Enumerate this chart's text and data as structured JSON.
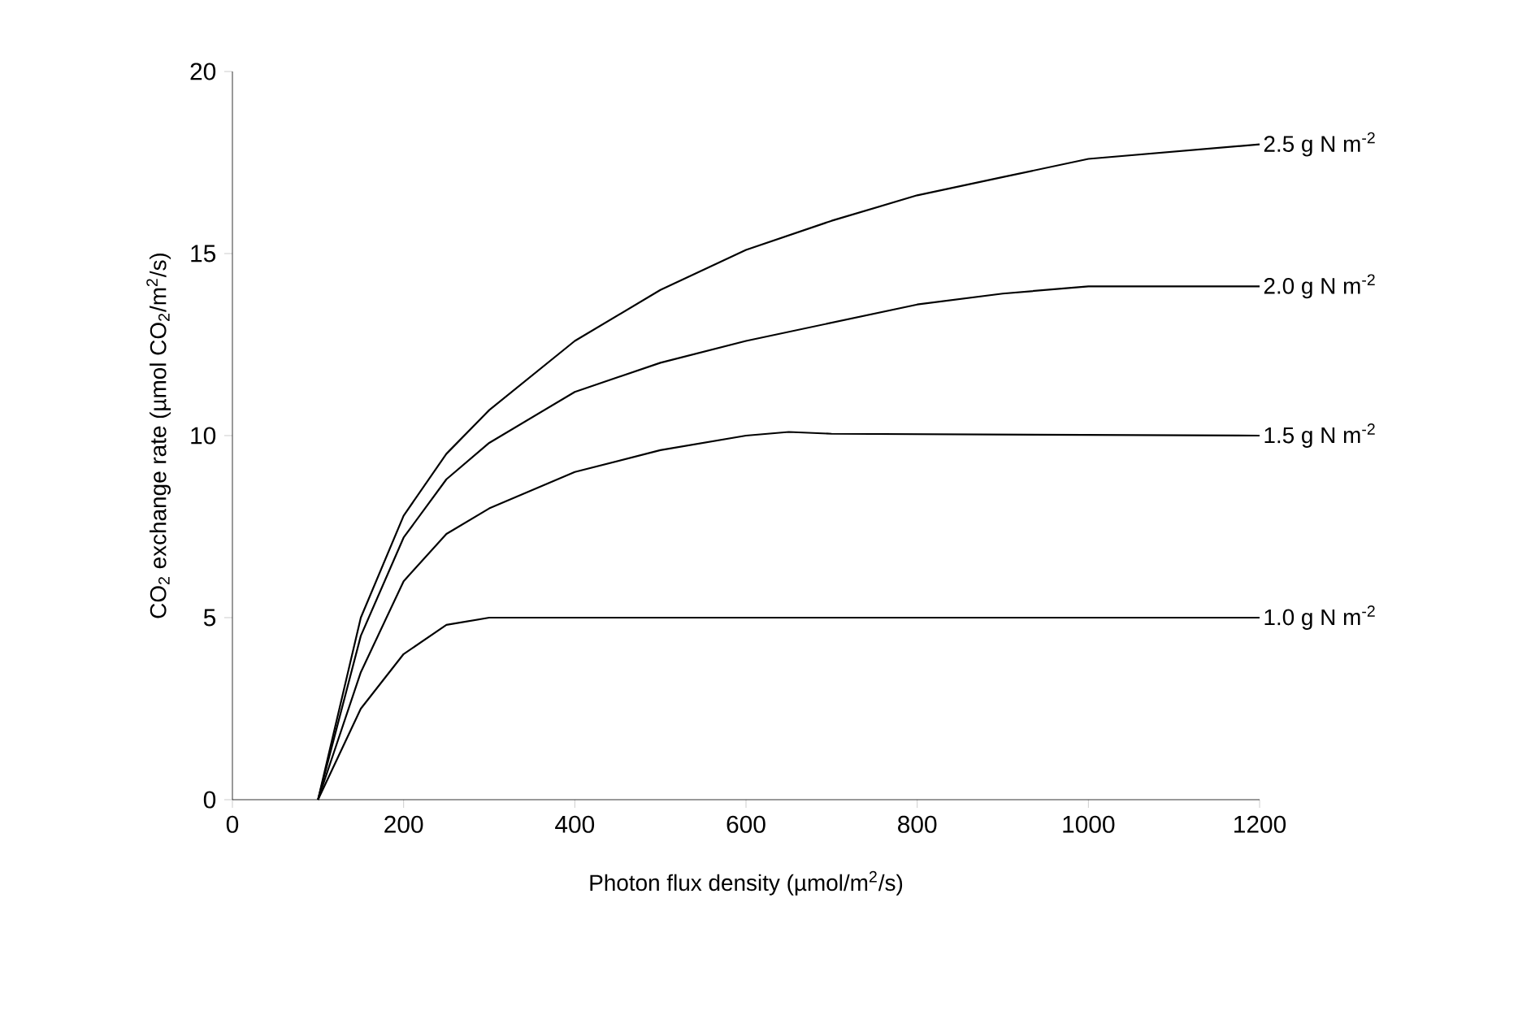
{
  "chart_data": {
    "type": "line",
    "xlabel": "Photon flux density (µmol/m$^{2}$/s)",
    "ylabel": "CO$_{2}$ exchange rate (µmol CO$_{2}$/m$^{2}$/s)",
    "xlim": [
      0,
      1200
    ],
    "ylim": [
      0,
      20
    ],
    "xticks": [
      0,
      200,
      400,
      600,
      800,
      1000,
      1200
    ],
    "yticks": [
      0,
      5,
      10,
      15,
      20
    ],
    "grid": false,
    "legend": false,
    "marker": "none",
    "line_style": "solid",
    "series": [
      {
        "name": "2.5 g N m$^{-2}$",
        "color": "#000000",
        "x": [
          100,
          150,
          200,
          250,
          300,
          400,
          500,
          600,
          700,
          800,
          900,
          1000,
          1100,
          1200
        ],
        "values": [
          0,
          5,
          7.8,
          9.5,
          10.7,
          12.6,
          14.0,
          15.1,
          15.9,
          16.6,
          17.1,
          17.6,
          17.8,
          18.0
        ]
      },
      {
        "name": "2.0 g N m$^{-2}$",
        "color": "#000000",
        "x": [
          100,
          150,
          200,
          250,
          300,
          400,
          500,
          600,
          700,
          800,
          900,
          1000,
          1200
        ],
        "values": [
          0,
          4.5,
          7.2,
          8.8,
          9.8,
          11.2,
          12.0,
          12.6,
          13.1,
          13.6,
          13.9,
          14.1,
          14.1
        ]
      },
      {
        "name": "1.5 g N m$^{-2}$",
        "color": "#000000",
        "x": [
          100,
          150,
          200,
          250,
          300,
          400,
          500,
          600,
          650,
          700,
          1200
        ],
        "values": [
          0,
          3.5,
          6.0,
          7.3,
          8.0,
          9.0,
          9.6,
          10.0,
          10.1,
          10.05,
          10.0
        ]
      },
      {
        "name": "1.0 g N m$^{-2}$",
        "color": "#000000",
        "x": [
          100,
          150,
          200,
          250,
          300,
          1200
        ],
        "values": [
          0,
          2.5,
          4.0,
          4.8,
          5.0,
          5.0
        ]
      }
    ]
  }
}
